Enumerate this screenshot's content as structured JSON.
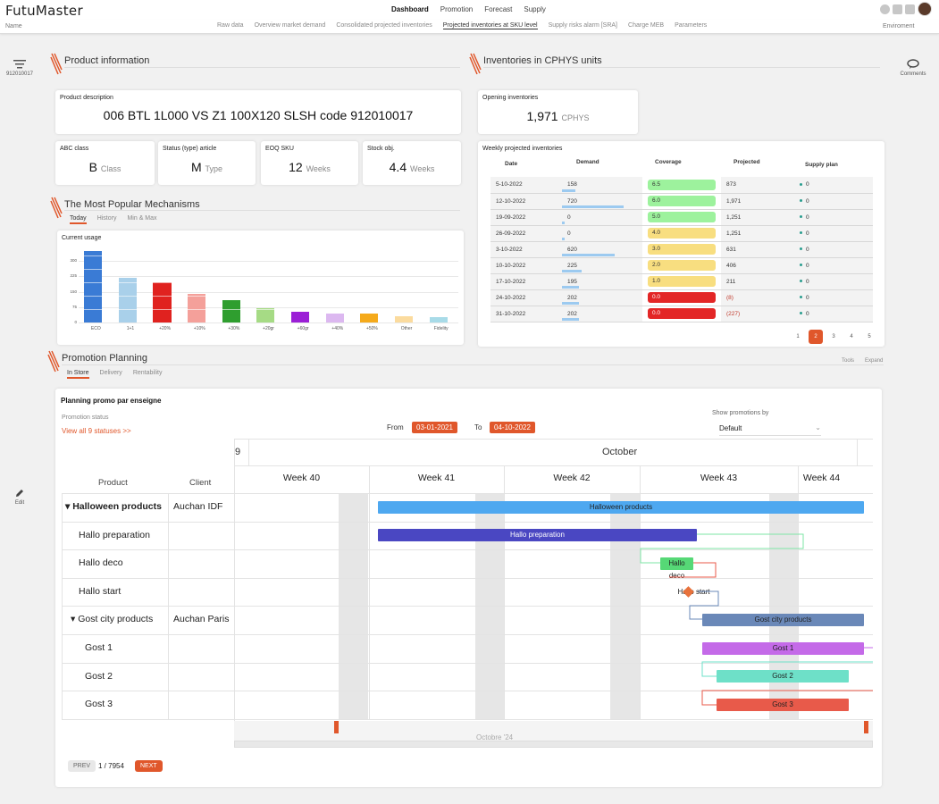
{
  "app": {
    "logo": "FutuMaster",
    "nav": [
      "Dashboard",
      "Promotion",
      "Forecast",
      "Supply"
    ],
    "active_nav": "Dashboard"
  },
  "subbar": {
    "name_label": "Name",
    "tabs": [
      "Raw data",
      "Overview market demand",
      "Consolidated projected inventories",
      "Projected inventories at SKU level",
      "Supply risks alarm [SRA]",
      "Charge MEB",
      "Parameters"
    ],
    "active_tab": "Projected inventories at SKU level",
    "env_label": "Enviroment"
  },
  "left": {
    "filter_value": "912010017",
    "edit_label": "Edit"
  },
  "right": {
    "comments_label": "Comments"
  },
  "product": {
    "section_title": "Product information",
    "desc_label": "Product description",
    "desc_value": "006 BTL 1L000 VS Z1 100X120 SLSH code 912010017",
    "abc_label": "ABC class",
    "abc_value": "B",
    "abc_unit": "Class",
    "status_label": "Status (type) article",
    "status_value": "M",
    "status_unit": "Type",
    "eoq_label": "EOQ SKU",
    "eoq_value": "12",
    "eoq_unit": "Weeks",
    "stock_label": "Stock obj.",
    "stock_value": "4.4",
    "stock_unit": "Weeks"
  },
  "mechanisms": {
    "section_title": "The Most Popular Mechanisms",
    "tabs": [
      "Today",
      "History",
      "Min & Max"
    ],
    "active_tab": "Today",
    "card_label": "Current usage"
  },
  "chart_data": {
    "type": "bar",
    "title": "Current usage",
    "ylim": [
      0,
      375
    ],
    "yticks": [
      "300",
      "225",
      "150",
      "75",
      "0"
    ],
    "categories": [
      "ECO",
      "1+1",
      "+20%",
      "+10%",
      "+30%",
      "+20gr",
      "+60gr",
      "+40%",
      "+50%",
      "Other",
      "Fidelity"
    ],
    "values": [
      350,
      220,
      195,
      140,
      110,
      70,
      53,
      45,
      42,
      30,
      25
    ],
    "colors": [
      "#3a7bd5",
      "#a9d0ea",
      "#e0221f",
      "#f4a09a",
      "#2f9e2f",
      "#a6db85",
      "#9b1fd6",
      "#dcb8f0",
      "#f5aa1b",
      "#fbdb9e",
      "#a8dbe8"
    ]
  },
  "inventories": {
    "section_title": "Inventories in CPHYS units",
    "opening_label": "Opening inventories",
    "opening_value": "1,971",
    "opening_unit": "CPHYS",
    "weekly_label": "Weekly projected inventories",
    "columns": [
      "Date",
      "Demand",
      "Coverage",
      "Projected",
      "Supply plan"
    ],
    "rows": [
      {
        "date": "5-10-2022",
        "demand": "158",
        "coverage": "6.5",
        "projected": "873",
        "supply": "0",
        "cov_color": "#9df29d",
        "dw": 0.17
      },
      {
        "date": "12-10-2022",
        "demand": "720",
        "coverage": "6.0",
        "projected": "1,971",
        "supply": "0",
        "cov_color": "#9df29d",
        "dw": 0.8
      },
      {
        "date": "19-09-2022",
        "demand": "0",
        "coverage": "5.0",
        "projected": "1,251",
        "supply": "0",
        "cov_color": "#9df29d",
        "dw": 0.04
      },
      {
        "date": "26-09-2022",
        "demand": "0",
        "coverage": "4.0",
        "projected": "1,251",
        "supply": "0",
        "cov_color": "#f8de80",
        "dw": 0.04
      },
      {
        "date": "3-10-2022",
        "demand": "620",
        "coverage": "3.0",
        "projected": "631",
        "supply": "0",
        "cov_color": "#f8de80",
        "dw": 0.69
      },
      {
        "date": "10-10-2022",
        "demand": "225",
        "coverage": "2.0",
        "projected": "406",
        "supply": "0",
        "cov_color": "#f8de80",
        "dw": 0.25
      },
      {
        "date": "17-10-2022",
        "demand": "195",
        "coverage": "1.0",
        "projected": "211",
        "supply": "0",
        "cov_color": "#f8de80",
        "dw": 0.22
      },
      {
        "date": "24-10-2022",
        "demand": "202",
        "coverage": "0.0",
        "projected": "(8)",
        "supply": "0",
        "cov_color": "#e32626",
        "dw": 0.22
      },
      {
        "date": "31-10-2022",
        "demand": "202",
        "coverage": "0.0",
        "projected": "(227)",
        "supply": "0",
        "cov_color": "#e32626",
        "dw": 0.22
      }
    ],
    "pages": [
      "1",
      "2",
      "3",
      "4",
      "5"
    ],
    "active_page": "2"
  },
  "promo": {
    "section_title": "Promotion Planning",
    "tabs": [
      "In Store",
      "Delivery",
      "Rentability"
    ],
    "active_tab": "In Store",
    "tools_label": "Tools",
    "expand_label": "Expand",
    "card_title": "Planning promo par enseigne",
    "status_label": "Promotion status",
    "status_link": "View all 9 statuses >>",
    "from_label": "From",
    "from_value": "03-01-2021",
    "to_label": "To",
    "to_value": "04-10-2022",
    "show_label": "Show promotions by",
    "show_value": "Default",
    "month_prev": "9",
    "month": "October",
    "weeks": [
      "Week 40",
      "Week 41",
      "Week 42",
      "Week 43",
      "Week 44"
    ],
    "col_product": "Product",
    "col_client": "Client",
    "rows": [
      {
        "product": "▾ Halloween products",
        "client": "Auchan IDF",
        "bold": true
      },
      {
        "product": "Hallo preparation",
        "client": ""
      },
      {
        "product": "Hallo deco",
        "client": ""
      },
      {
        "product": "Hallo start",
        "client": ""
      },
      {
        "product": "▾ Gost city products",
        "client": "Auchan Paris"
      },
      {
        "product": "Gost 1",
        "client": ""
      },
      {
        "product": "Gost 2",
        "client": ""
      },
      {
        "product": "Gost 3",
        "client": ""
      }
    ],
    "bars": [
      {
        "label": "Halloween products",
        "color": "#4ea8f0",
        "text": "#222"
      },
      {
        "label": "Hallo preparation",
        "color": "#4a47c2",
        "text": "#fff"
      },
      {
        "label": "Hallo deco",
        "color": "#56d876",
        "text": "#222"
      },
      {
        "label": "Hallo start",
        "color": "#e8723c",
        "text": "#222"
      },
      {
        "label": "Gost city products",
        "color": "#6a88b8",
        "text": "#222"
      },
      {
        "label": "Gost 1",
        "color": "#c46ae8",
        "text": "#222"
      },
      {
        "label": "Gost 2",
        "color": "#6ee0c8",
        "text": "#222"
      },
      {
        "label": "Gost 3",
        "color": "#e85a4a",
        "text": "#222"
      }
    ],
    "scroll_label": "Octobre '24",
    "prev_label": "PREV",
    "page_info": "1 / 7954",
    "next_label": "NEXT"
  }
}
